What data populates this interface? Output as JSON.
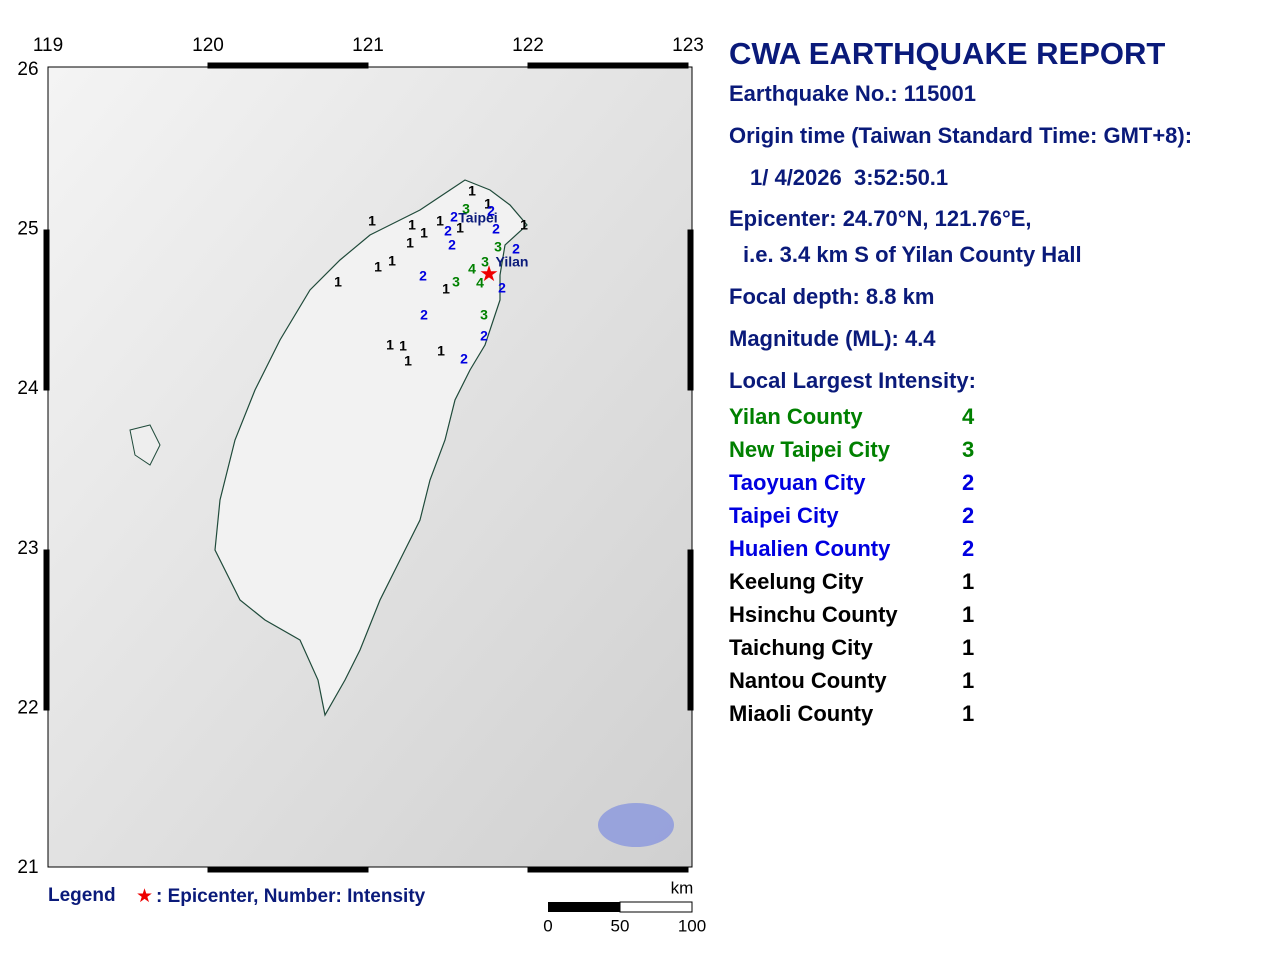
{
  "map": {
    "lon_ticks": [
      119,
      120,
      121,
      122,
      123
    ],
    "lat_ticks": [
      26,
      25,
      24,
      23,
      22,
      21
    ],
    "place_labels": [
      "Taipei",
      "Yilan"
    ],
    "intensities": [
      1,
      1,
      1,
      1,
      1,
      1,
      1,
      1,
      1,
      1,
      1,
      1,
      1,
      1,
      1,
      1,
      1,
      2,
      2,
      2,
      2,
      2,
      2,
      2,
      2,
      2,
      2,
      2,
      3,
      3,
      4,
      3,
      3,
      4,
      3
    ],
    "legend": {
      "title": "Legend",
      "symbol": "★",
      "text": ": Epicenter, Number: Intensity"
    },
    "scale": {
      "unit": "km",
      "ticks": [
        0,
        50,
        100
      ]
    }
  },
  "report": {
    "title": "CWA EARTHQUAKE REPORT",
    "number": "Earthquake No.: 115001",
    "origin_label": "Origin time (Taiwan Standard Time: GMT+8):",
    "origin_time": "1/ 4/2026  3:52:50.1",
    "epicenter": "Epicenter: 24.70°N, 121.76°E,",
    "epicenter_note": "i.e. 3.4 km S of Yilan County Hall",
    "depth": "Focal depth: 8.8 km",
    "magnitude": "Magnitude (ML): 4.4",
    "intensity_header": "Local Largest Intensity:",
    "regions": [
      {
        "name": "Yilan County",
        "intensity": 4
      },
      {
        "name": "New Taipei City",
        "intensity": 3
      },
      {
        "name": "Taoyuan City",
        "intensity": 2
      },
      {
        "name": "Taipei City",
        "intensity": 2
      },
      {
        "name": "Hualien County",
        "intensity": 2
      },
      {
        "name": "Keelung City",
        "intensity": 1
      },
      {
        "name": "Hsinchu County",
        "intensity": 1
      },
      {
        "name": "Taichung City",
        "intensity": 1
      },
      {
        "name": "Nantou County",
        "intensity": 1
      },
      {
        "name": "Miaoli County",
        "intensity": 1
      }
    ]
  }
}
